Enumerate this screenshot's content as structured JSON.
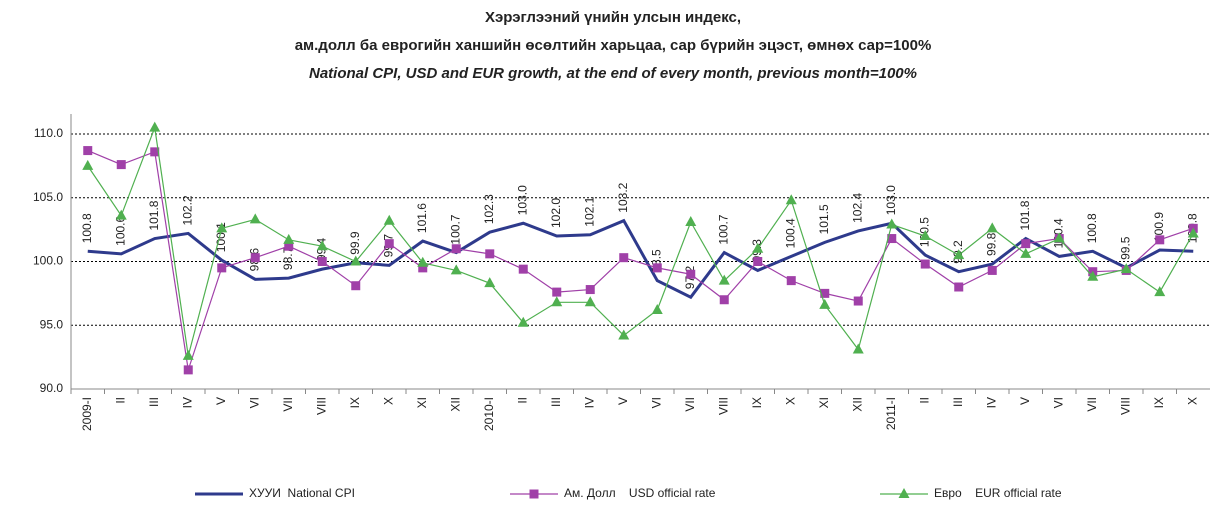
{
  "chart_data": {
    "type": "line",
    "title": "Хэрэглээний үнийн улсын индекс,",
    "subtitle": "ам.долл ба еврогийн ханшийн өсөлтийн харьцаа, сар бүрийн эцэст, өмнөх сар=100%",
    "subtitle_en": "National CPI, USD and EUR growth, at the end of every month, previous month=100%",
    "categories": [
      "2009-I",
      "II",
      "III",
      "IV",
      "V",
      "VI",
      "VII",
      "VIII",
      "IX",
      "X",
      "XI",
      "XII",
      "2010-I",
      "II",
      "III",
      "IV",
      "V",
      "VI",
      "VII",
      "VIII",
      "IX",
      "X",
      "XI",
      "XII",
      "2011-I",
      "II",
      "III",
      "IV",
      "V",
      "VI",
      "VII",
      "VIII",
      "IX",
      "X"
    ],
    "series": [
      {
        "name": "ХУУИ  National CPI",
        "color": "#2e3a8c",
        "marker": "none",
        "values": [
          100.8,
          100.6,
          101.8,
          102.2,
          100.1,
          98.6,
          98.7,
          99.4,
          99.9,
          99.7,
          101.6,
          100.7,
          102.3,
          103.0,
          102.0,
          102.1,
          103.2,
          98.5,
          97.2,
          100.7,
          99.3,
          100.4,
          101.5,
          102.4,
          103.0,
          100.5,
          99.2,
          99.8,
          101.8,
          100.4,
          100.8,
          99.5,
          100.9,
          100.8
        ],
        "value_labels": [
          "100.8",
          "100.6",
          "101.8",
          "102.2",
          "100.1",
          "98.6",
          "98.7",
          "99.4",
          "99.9",
          "99.7",
          "101.6",
          "100.7",
          "102.3",
          "103.0",
          "102.0",
          "102.1",
          "103.2",
          "98.5",
          "97.2",
          "100.7",
          "99.3",
          "100.4",
          "101.5",
          "102.4",
          "103.0",
          "100.5",
          "99.2",
          "99.8",
          "101.8",
          "100.4",
          "100.8",
          "99.5",
          "100.9",
          "100.8"
        ]
      },
      {
        "name": "Ам. Долл    USD official rate",
        "color": "#a040a8",
        "marker": "square",
        "values": [
          108.7,
          107.6,
          108.6,
          91.5,
          99.5,
          100.3,
          101.2,
          100.0,
          98.1,
          101.4,
          99.5,
          101.0,
          100.6,
          99.4,
          97.6,
          97.8,
          100.3,
          99.5,
          99.0,
          97.0,
          100.0,
          98.5,
          97.5,
          96.9,
          101.8,
          99.8,
          98.0,
          99.3,
          101.4,
          101.8,
          99.2,
          99.3,
          101.7,
          102.6
        ]
      },
      {
        "name": "Евро    EUR official rate",
        "color": "#50b050",
        "marker": "triangle",
        "values": [
          107.5,
          103.6,
          110.5,
          92.6,
          102.6,
          103.3,
          101.7,
          101.2,
          100.0,
          103.2,
          99.9,
          99.3,
          98.3,
          95.2,
          96.8,
          96.8,
          94.2,
          96.2,
          103.1,
          98.5,
          101.0,
          104.8,
          96.6,
          93.1,
          102.9,
          102.0,
          100.5,
          102.6,
          100.6,
          101.8,
          98.8,
          99.4,
          97.6,
          102.2
        ]
      }
    ],
    "ylim": [
      90,
      110
    ],
    "yticks": [
      {
        "value": 90,
        "label": "90.0"
      },
      {
        "value": 95,
        "label": "95.0"
      },
      {
        "value": 100,
        "label": "100.0"
      },
      {
        "value": 105,
        "label": "105.0"
      },
      {
        "value": 110,
        "label": "110.0"
      }
    ],
    "grid": true,
    "legend": "bottom"
  }
}
